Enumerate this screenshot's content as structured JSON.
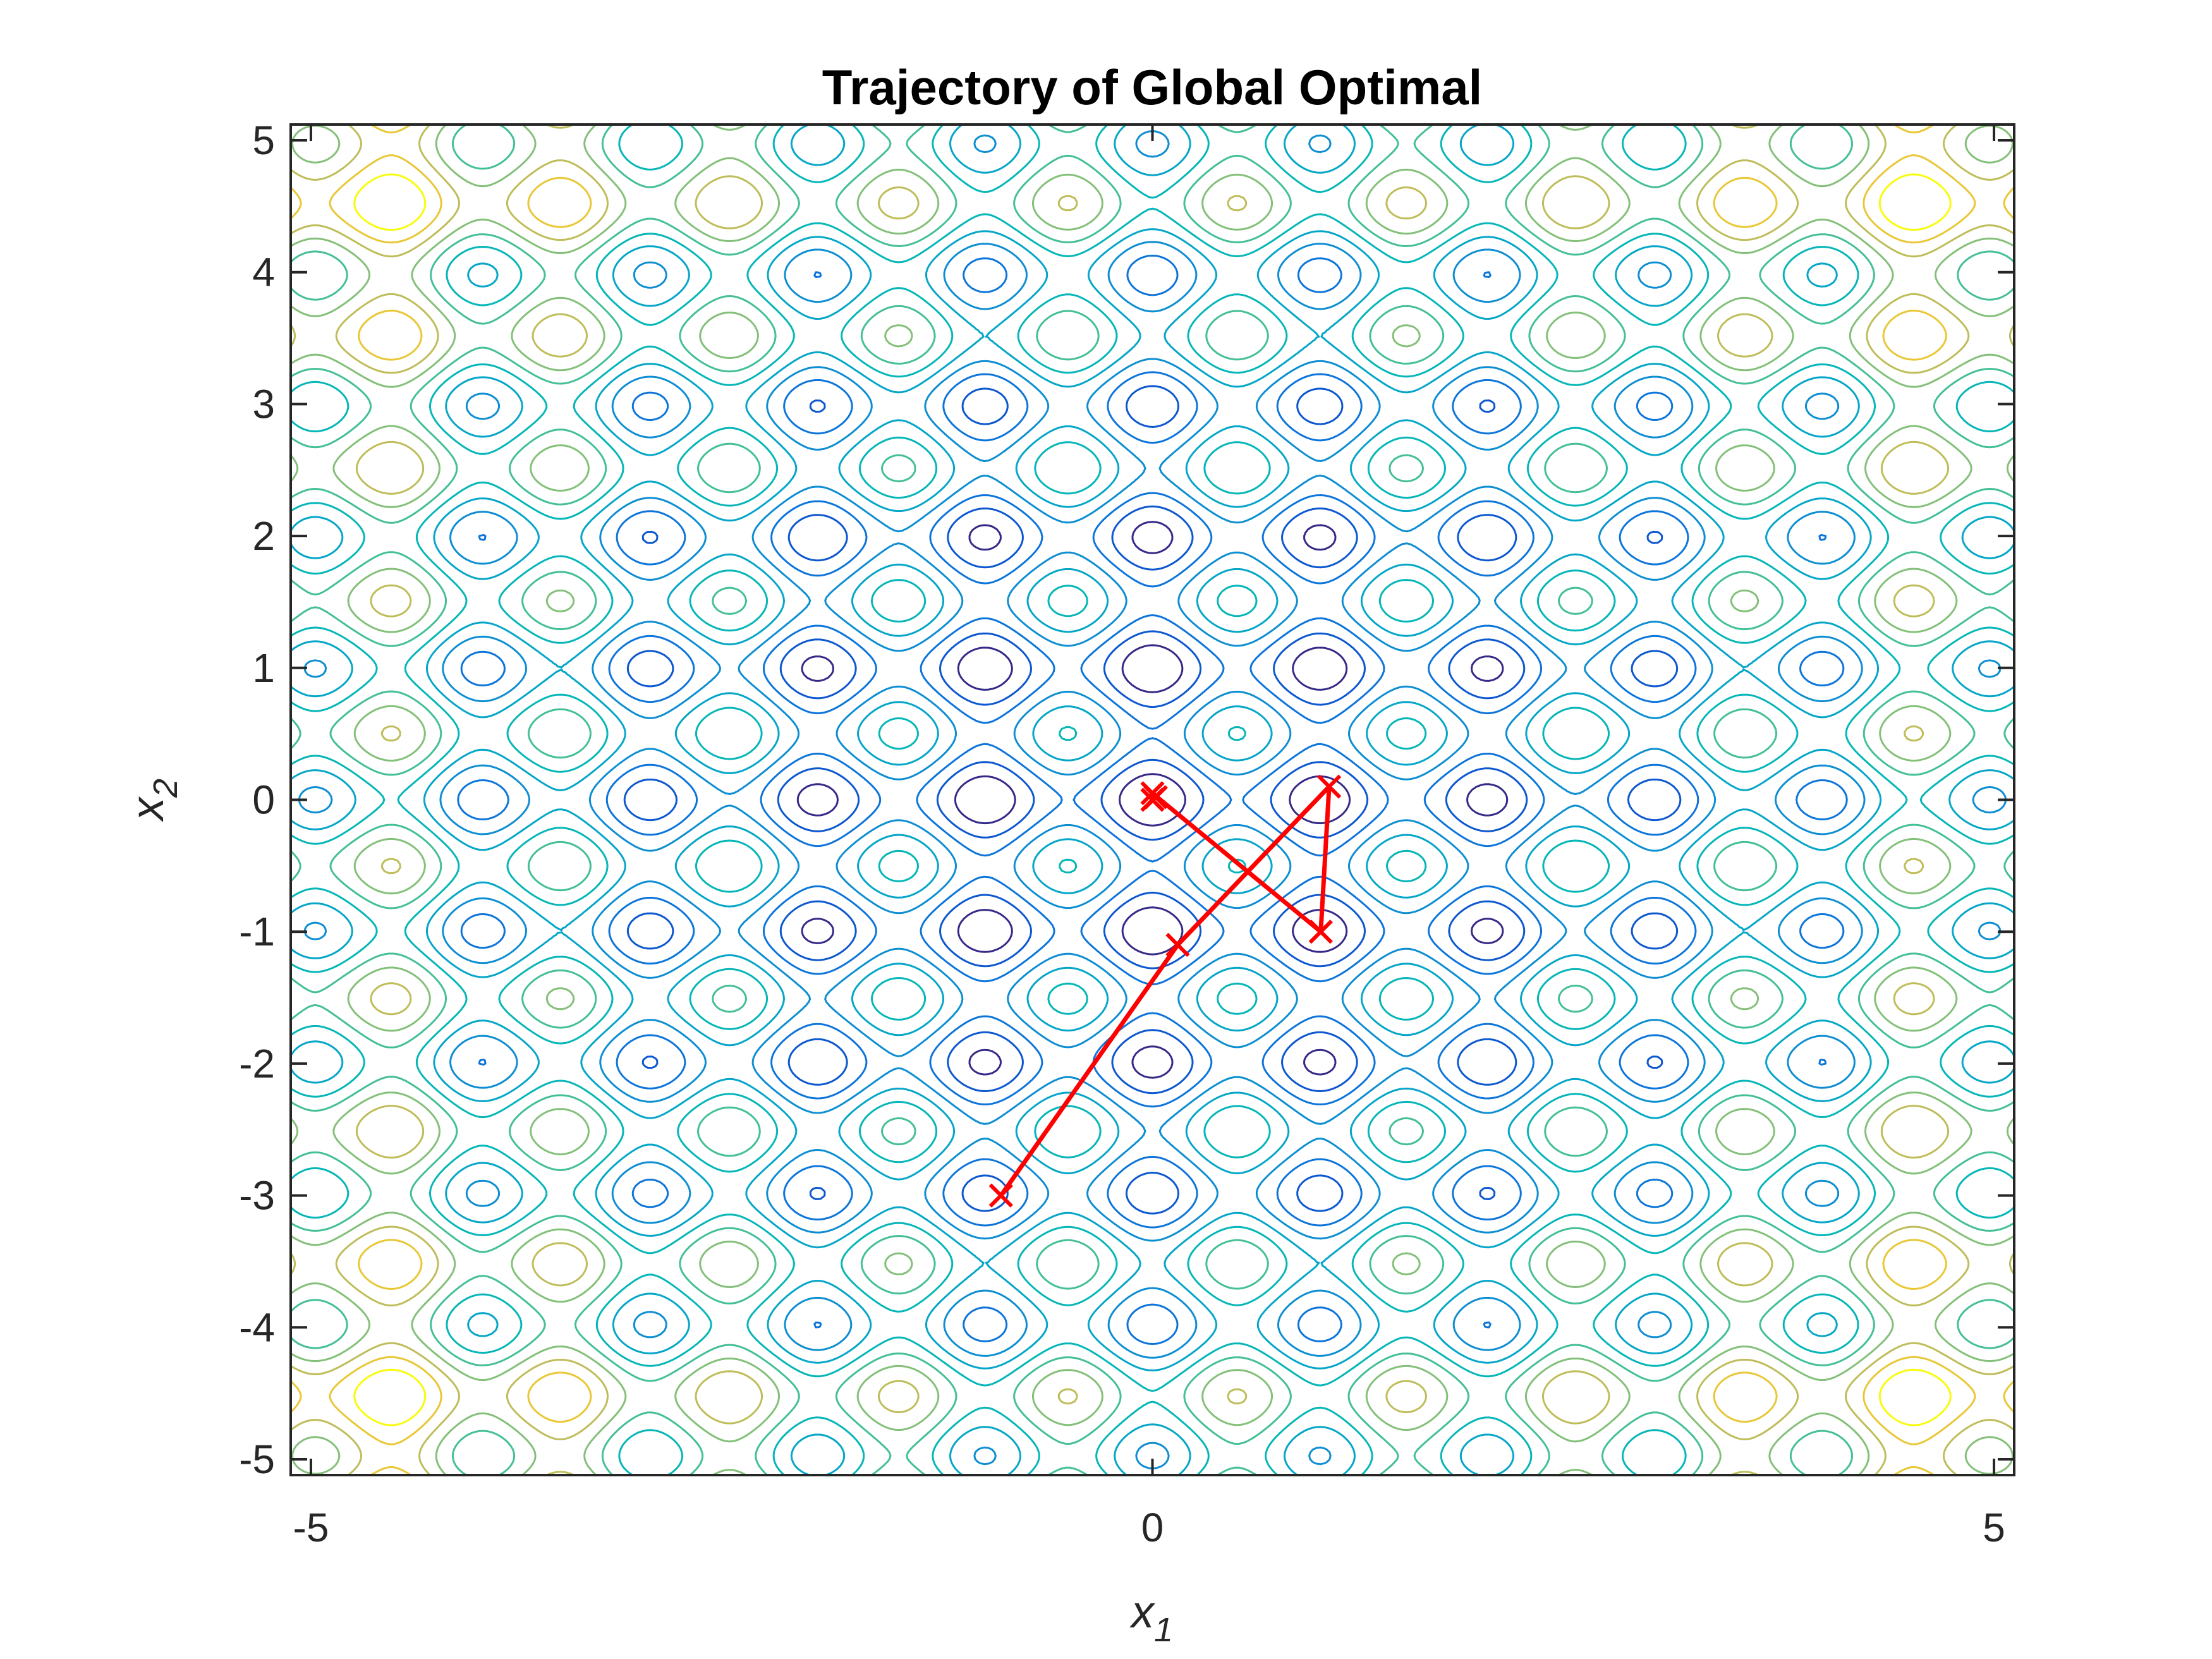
{
  "chart_data": {
    "type": "contour",
    "title": "Trajectory of Global Optimal",
    "xlabel": {
      "base": "x",
      "sub": "1"
    },
    "ylabel": {
      "base": "x",
      "sub": "2"
    },
    "xlim": [
      -5.12,
      5.12
    ],
    "ylim": [
      -5.12,
      5.12
    ],
    "x_ticks": [
      -5,
      0,
      5
    ],
    "y_ticks": [
      -5,
      -4,
      -3,
      -2,
      -1,
      0,
      1,
      2,
      3,
      4,
      5
    ],
    "contour_function": "rastrigin",
    "colormap": "parula",
    "trajectory": {
      "color": "#ff0000",
      "marker": "x",
      "points": [
        {
          "x": -0.9,
          "y": -3.0
        },
        {
          "x": 0.15,
          "y": -1.1
        },
        {
          "x": 1.05,
          "y": 0.1
        },
        {
          "x": 1.0,
          "y": -1.0
        },
        {
          "x": 0.0,
          "y": 0.05
        },
        {
          "x": 0.0,
          "y": 0.0
        },
        {
          "x": 0.02,
          "y": 0.02
        }
      ]
    }
  }
}
